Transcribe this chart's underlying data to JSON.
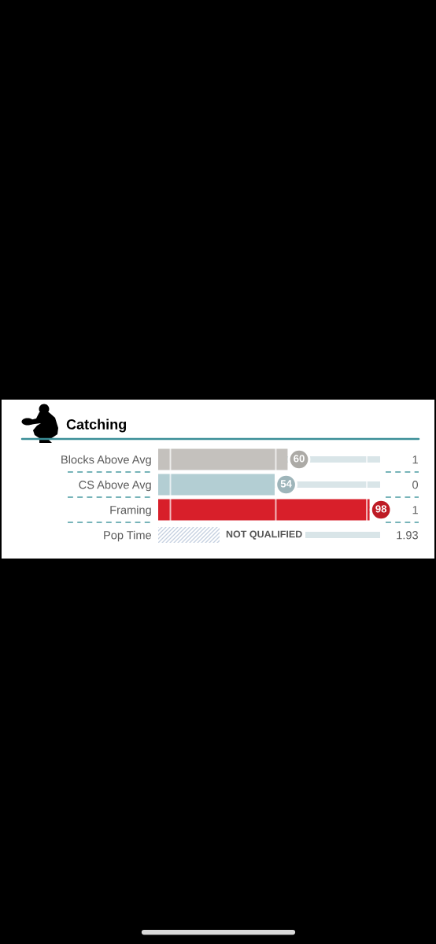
{
  "chart_data": {
    "type": "bar",
    "orientation": "horizontal",
    "title": "Catching",
    "categories": [
      "Blocks Above Avg",
      "CS Above Avg",
      "Framing",
      "Pop Time"
    ],
    "y2_categories": [
      "1",
      "0",
      "1",
      "1.93"
    ],
    "values": [
      60,
      54,
      98,
      null
    ],
    "colors": [
      "#c4c1bd",
      "#b3ced3",
      "#d81f2a",
      "#c5d0e0"
    ],
    "value_labels": [
      "60",
      "54",
      "98",
      "NOT QUALIFIED"
    ],
    "tick_labels": "y"
  }
}
